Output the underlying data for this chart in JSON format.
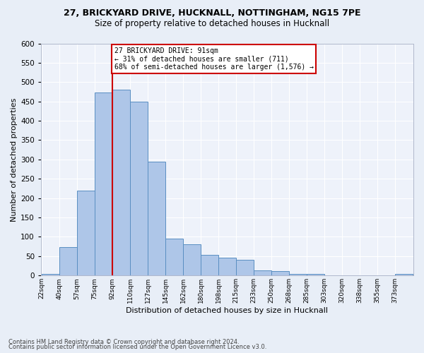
{
  "title1": "27, BRICKYARD DRIVE, HUCKNALL, NOTTINGHAM, NG15 7PE",
  "title2": "Size of property relative to detached houses in Hucknall",
  "xlabel": "Distribution of detached houses by size in Hucknall",
  "ylabel": "Number of detached properties",
  "footnote1": "Contains HM Land Registry data © Crown copyright and database right 2024.",
  "footnote2": "Contains public sector information licensed under the Open Government Licence v3.0.",
  "annotation_line1": "27 BRICKYARD DRIVE: 91sqm",
  "annotation_line2": "← 31% of detached houses are smaller (711)",
  "annotation_line3": "68% of semi-detached houses are larger (1,576) →",
  "bar_labels": [
    "22sqm",
    "40sqm",
    "57sqm",
    "75sqm",
    "92sqm",
    "110sqm",
    "127sqm",
    "145sqm",
    "162sqm",
    "180sqm",
    "198sqm",
    "215sqm",
    "233sqm",
    "250sqm",
    "268sqm",
    "285sqm",
    "303sqm",
    "320sqm",
    "338sqm",
    "355sqm",
    "373sqm"
  ],
  "bar_values": [
    5,
    73,
    220,
    473,
    480,
    450,
    295,
    95,
    80,
    53,
    46,
    40,
    13,
    12,
    4,
    5,
    0,
    0,
    0,
    0,
    5
  ],
  "bar_color": "#aec6e8",
  "bar_edge_color": "#5a8fc2",
  "vline_color": "#cc0000",
  "ylim": [
    0,
    600
  ],
  "bg_color": "#e8eef7",
  "plot_bg": "#eef2fa",
  "grid_color": "#ffffff",
  "annotation_box_color": "#cc0000",
  "annotation_fill": "#ffffff",
  "title1_fontsize": 9,
  "title2_fontsize": 8.5,
  "ylabel_fontsize": 8,
  "xlabel_fontsize": 8,
  "footnote_fontsize": 6
}
